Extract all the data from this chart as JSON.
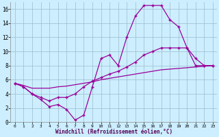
{
  "bg_color": "#cceeff",
  "line_color": "#990099",
  "grid_color": "#99bbcc",
  "xlabel": "Windchill (Refroidissement éolien,°C)",
  "xlim": [
    -0.5,
    23.5
  ],
  "ylim": [
    0,
    17
  ],
  "xticks": [
    0,
    1,
    2,
    3,
    4,
    5,
    6,
    7,
    8,
    9,
    10,
    11,
    12,
    13,
    14,
    15,
    16,
    17,
    18,
    19,
    20,
    21,
    22,
    23
  ],
  "yticks": [
    0,
    2,
    4,
    6,
    8,
    10,
    12,
    14,
    16
  ],
  "curve1_x": [
    0,
    1,
    2,
    3,
    4,
    5,
    6,
    7,
    8,
    9,
    10,
    11,
    12,
    13,
    14,
    15,
    16,
    17,
    18,
    19,
    20,
    21,
    22,
    23
  ],
  "curve1_y": [
    5.5,
    5.0,
    4.0,
    3.2,
    2.2,
    2.5,
    1.8,
    0.3,
    1.0,
    5.0,
    9.0,
    9.5,
    8.0,
    12.0,
    15.0,
    16.5,
    16.5,
    16.5,
    14.5,
    13.5,
    10.5,
    9.0,
    8.0,
    8.0
  ],
  "curve2_x": [
    0,
    1,
    2,
    3,
    4,
    5,
    6,
    7,
    8,
    9,
    10,
    11,
    12,
    13,
    14,
    15,
    16,
    17,
    18,
    19,
    20,
    21,
    22,
    23
  ],
  "curve2_y": [
    5.5,
    5.0,
    4.0,
    3.5,
    3.0,
    3.5,
    3.5,
    4.0,
    5.0,
    5.8,
    6.3,
    6.8,
    7.2,
    7.8,
    8.5,
    9.5,
    10.0,
    10.5,
    10.5,
    10.5,
    10.5,
    8.0,
    8.0,
    8.0
  ],
  "curve3_x": [
    0,
    1,
    2,
    3,
    4,
    5,
    6,
    7,
    8,
    9,
    10,
    11,
    12,
    13,
    14,
    15,
    16,
    17,
    18,
    19,
    20,
    21,
    22,
    23
  ],
  "curve3_y": [
    5.5,
    5.2,
    4.8,
    4.8,
    4.8,
    5.0,
    5.1,
    5.3,
    5.5,
    5.7,
    6.0,
    6.2,
    6.4,
    6.6,
    6.8,
    7.0,
    7.2,
    7.4,
    7.5,
    7.6,
    7.7,
    7.8,
    7.9,
    8.0
  ],
  "xlabel_fontsize": 5.5,
  "tick_fontsize_x": 4.5,
  "tick_fontsize_y": 5.5
}
